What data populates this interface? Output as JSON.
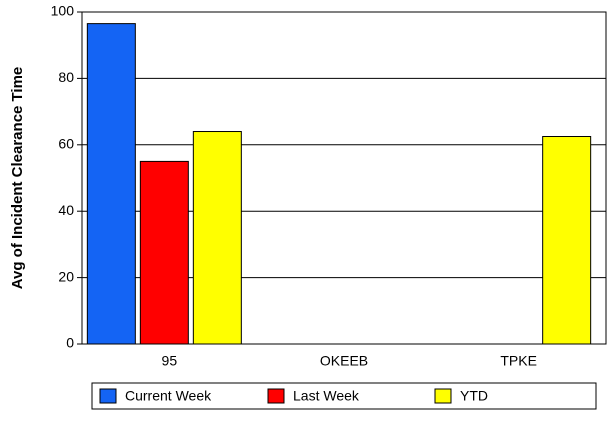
{
  "chart_data": {
    "type": "bar",
    "y_label": "Avg of Incident Clearance Time",
    "categories": [
      "95",
      "OKEEB",
      "TPKE"
    ],
    "series": [
      {
        "name": "Current Week",
        "color": "#1464f4",
        "values": [
          96.5,
          null,
          null
        ]
      },
      {
        "name": "Last Week",
        "color": "#ff0000",
        "values": [
          55,
          null,
          null
        ]
      },
      {
        "name": "YTD",
        "color": "#ffff00",
        "values": [
          64,
          null,
          62.5
        ]
      }
    ],
    "ylim": [
      0,
      100
    ],
    "yticks": [
      0,
      20,
      40,
      60,
      80,
      100
    ],
    "grid": true,
    "legend": "bottom"
  }
}
